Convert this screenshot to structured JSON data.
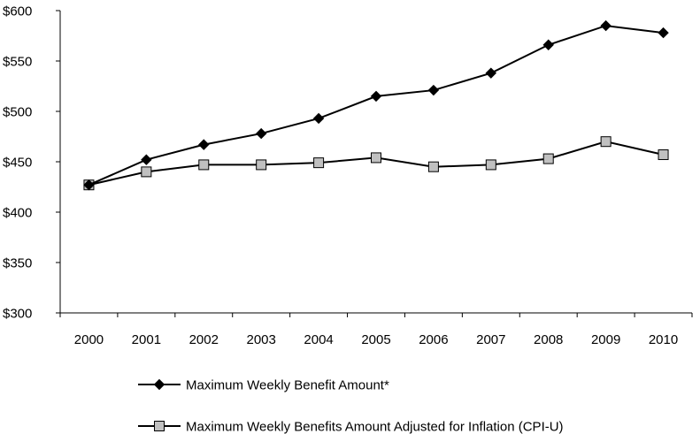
{
  "chart_data": {
    "type": "line",
    "title": "",
    "xlabel": "",
    "ylabel": "",
    "categories": [
      "2000",
      "2001",
      "2002",
      "2003",
      "2004",
      "2005",
      "2006",
      "2007",
      "2008",
      "2009",
      "2010"
    ],
    "ylim": [
      300,
      600
    ],
    "yticks": [
      300,
      350,
      400,
      450,
      500,
      550,
      600
    ],
    "ytick_labels": [
      "$300",
      "$350",
      "$400",
      "$450",
      "$500",
      "$550",
      "$600"
    ],
    "grid": false,
    "legend_position": "bottom",
    "series": [
      {
        "name": "Maximum Weekly Benefit Amount*",
        "marker": "diamond",
        "color": "#000000",
        "marker_color": "#000000",
        "values": [
          427,
          452,
          467,
          478,
          493,
          515,
          521,
          538,
          566,
          585,
          578
        ]
      },
      {
        "name": "Maximum Weekly Benefits Amount Adjusted for Inflation (CPI-U)",
        "marker": "square",
        "color": "#000000",
        "marker_color": "#c0c0c0",
        "values": [
          427,
          440,
          447,
          447,
          449,
          454,
          445,
          447,
          453,
          470,
          457
        ]
      }
    ]
  }
}
